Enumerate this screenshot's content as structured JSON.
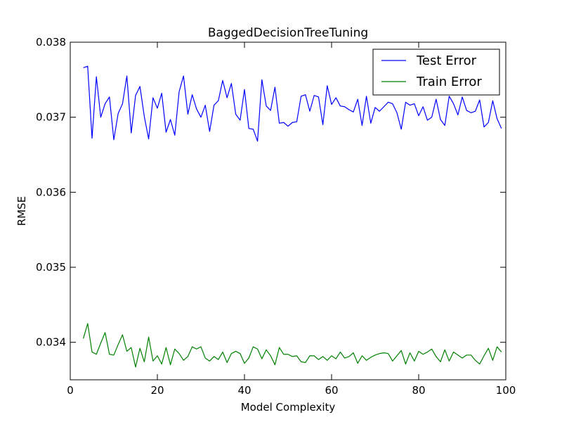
{
  "chart_data": {
    "type": "line",
    "title": "BaggedDecisionTreeTuning",
    "xlabel": "Model Complexity",
    "ylabel": "RMSE",
    "xlim": [
      0,
      100
    ],
    "ylim": [
      0.0335,
      0.038
    ],
    "x_ticks": [
      0,
      20,
      40,
      60,
      80,
      100
    ],
    "x_tick_labels": [
      "0",
      "20",
      "40",
      "60",
      "80",
      "100"
    ],
    "y_ticks": [
      0.034,
      0.035,
      0.036,
      0.037,
      0.038
    ],
    "y_tick_labels": [
      "0.034",
      "0.035",
      "0.036",
      "0.037",
      "0.038"
    ],
    "grid": false,
    "legend_position": "upper right",
    "x": [
      3,
      4,
      5,
      6,
      7,
      8,
      9,
      10,
      11,
      12,
      13,
      14,
      15,
      16,
      17,
      18,
      19,
      20,
      21,
      22,
      23,
      24,
      25,
      26,
      27,
      28,
      29,
      30,
      31,
      32,
      33,
      34,
      35,
      36,
      37,
      38,
      39,
      40,
      41,
      42,
      43,
      44,
      45,
      46,
      47,
      48,
      49,
      50,
      51,
      52,
      53,
      54,
      55,
      56,
      57,
      58,
      59,
      60,
      61,
      62,
      63,
      64,
      65,
      66,
      67,
      68,
      69,
      70,
      71,
      72,
      73,
      74,
      75,
      76,
      77,
      78,
      79,
      80,
      81,
      82,
      83,
      84,
      85,
      86,
      87,
      88,
      89,
      90,
      91,
      92,
      93,
      94,
      95,
      96,
      97,
      98,
      99
    ],
    "series": [
      {
        "name": "Test Error",
        "color": "#0000ff",
        "values": [
          0.03766,
          0.03768,
          0.03672,
          0.03754,
          0.037,
          0.03718,
          0.03727,
          0.0367,
          0.03705,
          0.03718,
          0.03755,
          0.03679,
          0.03729,
          0.03741,
          0.03701,
          0.03671,
          0.03726,
          0.03712,
          0.03732,
          0.0368,
          0.03697,
          0.03676,
          0.03734,
          0.03755,
          0.03704,
          0.0373,
          0.03711,
          0.037,
          0.03716,
          0.03681,
          0.03716,
          0.03722,
          0.03749,
          0.03726,
          0.03745,
          0.03704,
          0.03696,
          0.03737,
          0.03685,
          0.03684,
          0.03668,
          0.0375,
          0.03715,
          0.03709,
          0.0374,
          0.03692,
          0.03693,
          0.03688,
          0.03693,
          0.03694,
          0.03728,
          0.0373,
          0.03708,
          0.03729,
          0.03727,
          0.0369,
          0.03742,
          0.03717,
          0.03726,
          0.03715,
          0.03714,
          0.0371,
          0.03707,
          0.03724,
          0.03689,
          0.03728,
          0.03692,
          0.03713,
          0.03708,
          0.03714,
          0.0372,
          0.03718,
          0.03706,
          0.03684,
          0.0372,
          0.03716,
          0.03718,
          0.03702,
          0.03714,
          0.03696,
          0.037,
          0.03724,
          0.03697,
          0.03689,
          0.03728,
          0.03718,
          0.03703,
          0.03727,
          0.03709,
          0.03706,
          0.03708,
          0.03723,
          0.03687,
          0.03693,
          0.03722,
          0.03698,
          0.03685
        ]
      },
      {
        "name": "Train Error",
        "color": "#008000",
        "values": [
          0.03405,
          0.03425,
          0.03387,
          0.03384,
          0.03399,
          0.03413,
          0.03384,
          0.03383,
          0.03397,
          0.0341,
          0.03388,
          0.03393,
          0.03367,
          0.03392,
          0.03374,
          0.03407,
          0.03375,
          0.03382,
          0.03371,
          0.03393,
          0.0337,
          0.03391,
          0.03385,
          0.03376,
          0.03381,
          0.03394,
          0.03391,
          0.03394,
          0.03379,
          0.03375,
          0.03381,
          0.03377,
          0.03387,
          0.03373,
          0.03385,
          0.03388,
          0.03385,
          0.03372,
          0.03379,
          0.03394,
          0.03391,
          0.03378,
          0.0339,
          0.03382,
          0.0337,
          0.03393,
          0.03384,
          0.03384,
          0.03381,
          0.03382,
          0.03374,
          0.03373,
          0.03382,
          0.03382,
          0.03377,
          0.03381,
          0.03376,
          0.03382,
          0.03378,
          0.03387,
          0.03379,
          0.03381,
          0.03386,
          0.03372,
          0.03382,
          0.03376,
          0.0338,
          0.03383,
          0.03385,
          0.03386,
          0.03385,
          0.03375,
          0.03382,
          0.03389,
          0.03371,
          0.03386,
          0.03375,
          0.03388,
          0.03384,
          0.03387,
          0.03391,
          0.03381,
          0.03374,
          0.0339,
          0.03375,
          0.03387,
          0.03383,
          0.03379,
          0.03383,
          0.03383,
          0.03376,
          0.03371,
          0.03382,
          0.03392,
          0.03376,
          0.03394,
          0.03387
        ]
      }
    ]
  }
}
